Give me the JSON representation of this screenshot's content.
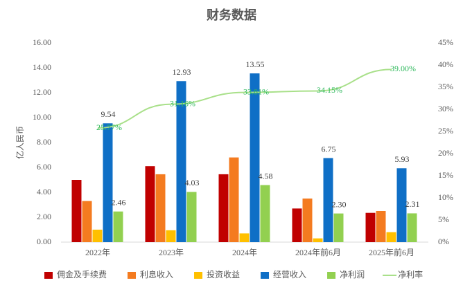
{
  "chart_data": {
    "type": "bar",
    "title": "财务数据",
    "y_label": "亿人民币",
    "categories": [
      "2022年",
      "2023年",
      "2024年",
      "2024年前6月",
      "2025年前6月"
    ],
    "series": [
      {
        "name": "佣金及手续费",
        "color": "#c00000",
        "values": [
          5.0,
          6.1,
          5.45,
          2.7,
          2.35
        ]
      },
      {
        "name": "利息收入",
        "color": "#f47b20",
        "values": [
          3.3,
          5.45,
          6.8,
          3.5,
          2.5
        ]
      },
      {
        "name": "投资收益",
        "color": "#ffc000",
        "values": [
          1.0,
          0.95,
          0.7,
          0.3,
          0.8
        ]
      },
      {
        "name": "经营收入",
        "color": "#0f6fc6",
        "values": [
          9.54,
          12.93,
          13.55,
          6.75,
          5.93
        ],
        "value_labels": [
          "9.54",
          "12.93",
          "13.55",
          "6.75",
          "5.93"
        ]
      },
      {
        "name": "净利润",
        "color": "#92d050",
        "values": [
          2.46,
          4.03,
          4.58,
          2.3,
          2.31
        ],
        "value_labels": [
          "2.46",
          "4.03",
          "4.58",
          "2.30",
          "2.31"
        ]
      },
      {
        "name": "净利率",
        "color": "#a9e08a",
        "type": "line",
        "axis": "y2",
        "values": [
          25.77,
          31.16,
          33.81,
          34.15,
          39.0
        ],
        "value_labels": [
          "25.77%",
          "31.16%",
          "33.81%",
          "34.15%",
          "39.00%"
        ]
      }
    ],
    "ylim": [
      0,
      16
    ],
    "yticks": [
      {
        "value": 0,
        "label": "0.00"
      },
      {
        "value": 2,
        "label": "2.00"
      },
      {
        "value": 4,
        "label": "4.00"
      },
      {
        "value": 6,
        "label": "6.00"
      },
      {
        "value": 8,
        "label": "8.00"
      },
      {
        "value": 10,
        "label": "10.00"
      },
      {
        "value": 12,
        "label": "12.00"
      },
      {
        "value": 14,
        "label": "14.00"
      },
      {
        "value": 16,
        "label": "16.00"
      }
    ],
    "y2lim": [
      0,
      45
    ],
    "y2ticks": [
      {
        "value": 0,
        "label": "0%"
      },
      {
        "value": 5,
        "label": "5%"
      },
      {
        "value": 10,
        "label": "10%"
      },
      {
        "value": 15,
        "label": "15%"
      },
      {
        "value": 20,
        "label": "20%"
      },
      {
        "value": 25,
        "label": "25%"
      },
      {
        "value": 30,
        "label": "30%"
      },
      {
        "value": 35,
        "label": "35%"
      },
      {
        "value": 40,
        "label": "40%"
      },
      {
        "value": 45,
        "label": "45%"
      }
    ]
  }
}
